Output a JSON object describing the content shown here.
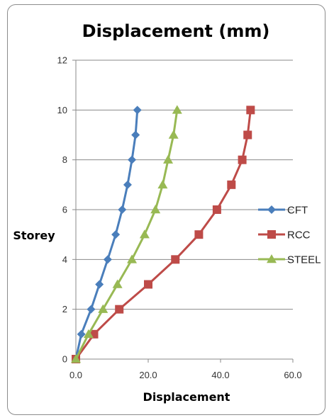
{
  "chart_data": {
    "type": "line",
    "title": "Displacement (mm)",
    "xlabel": "Displacement",
    "ylabel": "Storey",
    "xlim": [
      0,
      60
    ],
    "ylim": [
      0,
      12
    ],
    "x_ticks": [
      "0.0",
      "20.0",
      "40.0",
      "60.0"
    ],
    "y_ticks": [
      "0",
      "2",
      "4",
      "6",
      "8",
      "10",
      "12"
    ],
    "grid": "horizontal",
    "legend_position": "right",
    "series": [
      {
        "name": "CFT",
        "color": "#4a7ebb",
        "marker": "diamond",
        "points": [
          [
            0,
            0
          ],
          [
            1.5,
            1
          ],
          [
            4.2,
            2
          ],
          [
            6.5,
            3
          ],
          [
            8.8,
            4
          ],
          [
            11,
            5
          ],
          [
            12.8,
            6
          ],
          [
            14.3,
            7
          ],
          [
            15.5,
            8
          ],
          [
            16.5,
            9
          ],
          [
            17,
            10
          ]
        ]
      },
      {
        "name": "RCC",
        "color": "#be4b48",
        "marker": "square",
        "points": [
          [
            0,
            0
          ],
          [
            5,
            1
          ],
          [
            12,
            2
          ],
          [
            20,
            3
          ],
          [
            27.5,
            4
          ],
          [
            34,
            5
          ],
          [
            39,
            6
          ],
          [
            43,
            7
          ],
          [
            46,
            8
          ],
          [
            47.5,
            9
          ],
          [
            48.3,
            10
          ]
        ]
      },
      {
        "name": "STEEL",
        "color": "#98b954",
        "marker": "triangle",
        "points": [
          [
            0,
            0
          ],
          [
            3.5,
            1
          ],
          [
            7.5,
            2
          ],
          [
            11.5,
            3
          ],
          [
            15.5,
            4
          ],
          [
            19,
            5
          ],
          [
            22,
            6
          ],
          [
            24,
            7
          ],
          [
            25.5,
            8
          ],
          [
            27,
            9
          ],
          [
            28,
            10
          ]
        ]
      }
    ]
  }
}
